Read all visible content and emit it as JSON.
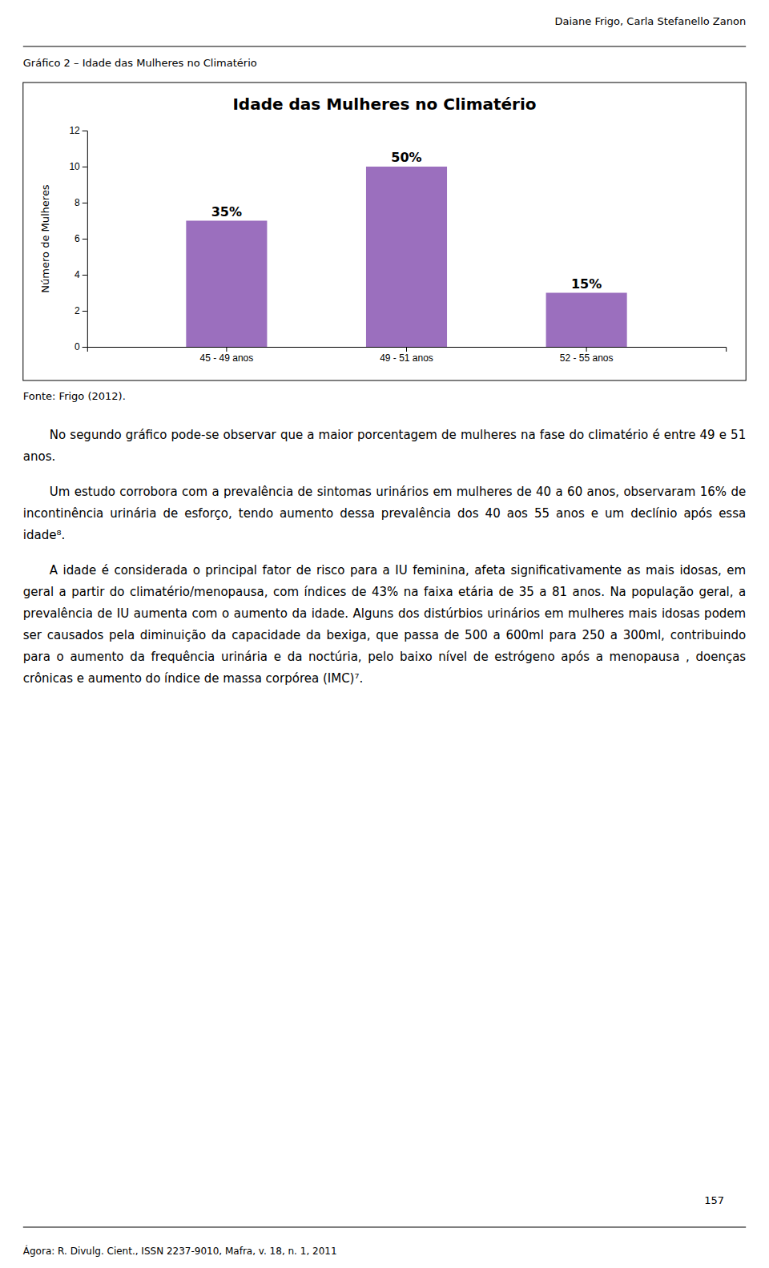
{
  "header": "Daiane Frigo, Carla Stefanello Zanon",
  "graph_label": "Gráfico 2 – Idade das Mulheres no Climatério",
  "chart_data": {
    "type": "bar",
    "title": "Idade das Mulheres no Climatério",
    "categories": [
      "45 - 49 anos",
      "49 - 51 anos",
      "52 - 55 anos"
    ],
    "values": [
      7,
      10,
      3
    ],
    "color": "#9B6FBE",
    "annotations": [
      "35%",
      "50%",
      "15%"
    ],
    "ylabel": "Número de Mulheres",
    "ylim": [
      0,
      12
    ],
    "yticks": [
      0,
      2,
      4,
      6,
      8,
      10,
      12
    ],
    "grid": false
  },
  "source": "Fonte: Frigo (2012).",
  "paragraphs": [
    "No segundo gráfico pode-se observar que a maior porcentagem de mulheres na fase do climatério é entre 49 e 51 anos.",
    "Um estudo corrobora com a prevalência de sintomas urinários em mulheres de 40 a 60 anos, observaram 16% de incontinência urinária de esforço, tendo aumento dessa prevalência dos 40 aos 55 anos e um declínio após essa idade⁸.",
    "A idade é considerada o principal fator de risco para a IU feminina, afeta significativamente as mais idosas, em geral a partir do climatério/menopausa, com índices de 43% na faixa etária de 35 a 81 anos. Na população geral, a prevalência de IU aumenta com o aumento da idade. Alguns dos distúrbios urinários em mulheres mais idosas podem ser causados pela diminuição da capacidade da bexiga, que passa de 500 a 600ml para 250 a 300ml, contribuindo para o aumento da frequência urinária e da noctúria, pelo baixo nível de estrógeno após a menopausa , doenças crônicas e aumento do índice de massa corpórea (IMC)⁷."
  ],
  "page_number": "157",
  "footer": "Ágora: R. Divulg. Cient., ISSN 2237-9010, Mafra, v. 18, n. 1, 2011"
}
